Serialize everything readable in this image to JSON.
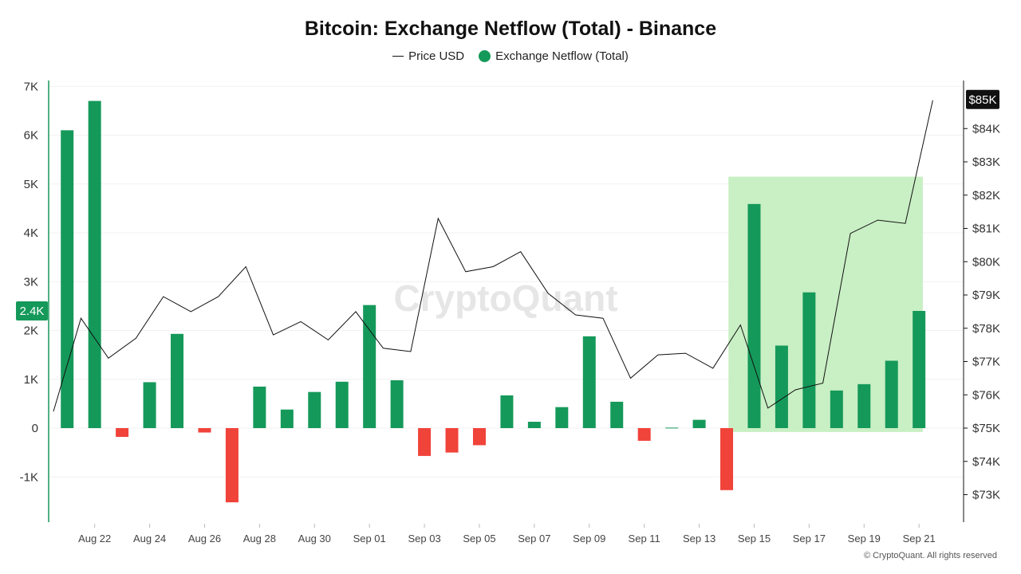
{
  "chart_data": {
    "type": "bar",
    "title": "Bitcoin: Exchange Netflow (Total) - Binance",
    "legend": [
      {
        "name": "Price USD",
        "kind": "line",
        "color": "#111111"
      },
      {
        "name": "Exchange Netflow (Total)",
        "kind": "dot",
        "color": "#15995a"
      }
    ],
    "legend_position": "top-center",
    "watermark": "CryptoQuant",
    "copyright": "© CryptoQuant. All rights reserved",
    "x_tick_labels": [
      "Aug 22",
      "Aug 24",
      "Aug 26",
      "Aug 28",
      "Aug 30",
      "Sep 01",
      "Sep 03",
      "Sep 05",
      "Sep 07",
      "Sep 09",
      "Sep 11",
      "Sep 13",
      "Sep 15",
      "Sep 17",
      "Sep 19",
      "Sep 21"
    ],
    "x_tick_indices": [
      1,
      3,
      5,
      7,
      9,
      11,
      13,
      15,
      17,
      19,
      21,
      23,
      25,
      27,
      29,
      31
    ],
    "y_left": {
      "ticks": [
        -1000,
        0,
        1000,
        2000,
        3000,
        4000,
        5000,
        6000,
        7000
      ],
      "tick_labels": [
        "-1K",
        "0",
        "1K",
        "2K",
        "3K",
        "4K",
        "5K",
        "6K",
        "7K"
      ],
      "range": [
        -1900,
        7100
      ]
    },
    "y_right": {
      "ticks": [
        73000,
        74000,
        75000,
        76000,
        77000,
        78000,
        79000,
        80000,
        81000,
        82000,
        83000,
        84000
      ],
      "tick_labels": [
        "$73K",
        "$74K",
        "$75K",
        "$76K",
        "$77K",
        "$78K",
        "$79K",
        "$80K",
        "$81K",
        "$82K",
        "$83K",
        "$84K"
      ],
      "range": [
        72400,
        86000
      ]
    },
    "current_value_badges": {
      "netflow": "2.4K",
      "price": "$85K",
      "netflow_color": "#15995a",
      "price_color": "#111111"
    },
    "positive_color": "#15995a",
    "negative_color": "#f0433a",
    "highlight": {
      "from_index": 25,
      "to_index": 31,
      "y_from": -80,
      "y_to": 5150,
      "color": "#c9efc4"
    },
    "series": [
      {
        "name": "Exchange Netflow (Total)",
        "kind": "bar",
        "values": [
          6100,
          6700,
          -180,
          940,
          1930,
          -90,
          -1520,
          850,
          380,
          740,
          950,
          2520,
          980,
          -570,
          -500,
          -350,
          670,
          130,
          430,
          1880,
          540,
          -260,
          10,
          170,
          -1270,
          4590,
          1690,
          2780,
          770,
          900,
          1380,
          2400
        ]
      },
      {
        "name": "Price USD",
        "kind": "line",
        "values": [
          75500,
          78300,
          77100,
          77700,
          78950,
          78500,
          78950,
          79850,
          77800,
          78200,
          77650,
          78500,
          77400,
          77300,
          81300,
          79700,
          79850,
          80300,
          79050,
          78400,
          78300,
          76500,
          77200,
          77250,
          76800,
          78100,
          75600,
          76150,
          76350,
          80850,
          81250,
          81150,
          84850
        ]
      }
    ]
  }
}
